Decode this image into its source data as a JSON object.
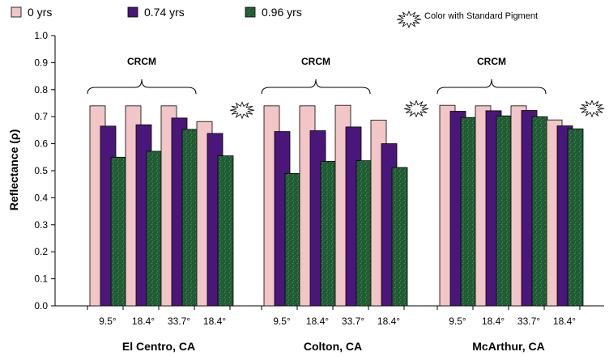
{
  "colors": {
    "s0": "#f2c6c6",
    "s1": "#4b167a",
    "s2": "#1f5a32",
    "s2_texture": "#3f8a55",
    "axis": "#000000"
  },
  "chart_data": {
    "type": "bar",
    "ylabel": "Reflectance (ρ)",
    "ylim": [
      0,
      1
    ],
    "yticks": [
      "0.0",
      "0.1",
      "0.2",
      "0.3",
      "0.4",
      "0.5",
      "0.6",
      "0.7",
      "0.8",
      "0.9",
      "1.0"
    ],
    "legend": {
      "placement": "top-left",
      "entries": [
        "0 yrs",
        "0.74 yrs",
        "0.96 yrs"
      ],
      "standard_pigment_label": "Color with Standard Pigment"
    },
    "brace_label": "CRCM",
    "groups": [
      {
        "name": "El Centro, CA",
        "categories": [
          "9.5°",
          "18.4°",
          "33.7°",
          "18.4°"
        ],
        "values": [
          [
            0.74,
            0.665,
            0.55
          ],
          [
            0.74,
            0.67,
            0.572
          ],
          [
            0.74,
            0.695,
            0.653
          ],
          [
            0.682,
            0.638,
            0.555
          ]
        ],
        "standard_pigment": [
          false,
          false,
          false,
          true
        ]
      },
      {
        "name": "Colton, CA",
        "categories": [
          "9.5°",
          "18.4°",
          "33.7°",
          "18.4°"
        ],
        "values": [
          [
            0.74,
            0.645,
            0.49
          ],
          [
            0.74,
            0.648,
            0.535
          ],
          [
            0.742,
            0.662,
            0.537
          ],
          [
            0.687,
            0.6,
            0.512
          ]
        ],
        "standard_pigment": [
          false,
          false,
          false,
          true
        ]
      },
      {
        "name": "McArthur, CA",
        "categories": [
          "9.5°",
          "18.4°",
          "33.7°",
          "18.4°"
        ],
        "values": [
          [
            0.742,
            0.72,
            0.697
          ],
          [
            0.74,
            0.722,
            0.703
          ],
          [
            0.74,
            0.723,
            0.7
          ],
          [
            0.688,
            0.666,
            0.655
          ]
        ],
        "standard_pigment": [
          false,
          false,
          false,
          true
        ]
      }
    ]
  }
}
